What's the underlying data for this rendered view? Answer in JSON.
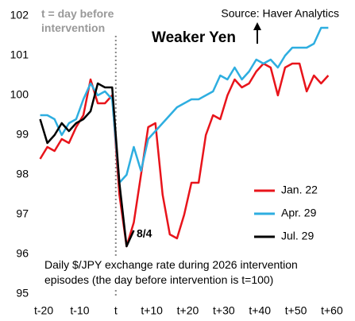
{
  "chart_data": {
    "type": "line",
    "source": "Source: Haver Analytics",
    "marker_note": "t = day before intervention",
    "direction_label": "Weaker Yen",
    "point_label": "8/4",
    "note": "Daily $/JPY exchange rate during 2026 intervention episodes (the day before intervention is t=100)",
    "x": [
      -21,
      -19,
      -17,
      -15,
      -13,
      -11,
      -9,
      -7,
      -5,
      -3,
      -1,
      1,
      3,
      5,
      7,
      9,
      11,
      13,
      15,
      17,
      19,
      21,
      23,
      25,
      27,
      29,
      31,
      33,
      35,
      37,
      39,
      41,
      43,
      45,
      47,
      49,
      51,
      53,
      55,
      57,
      59
    ],
    "series": [
      {
        "name": "Jan. 22",
        "color": "#e8141b",
        "values": [
          98.4,
          98.7,
          98.6,
          98.9,
          98.8,
          99.2,
          99.5,
          100.4,
          99.8,
          99.8,
          100.0,
          97.5,
          96.2,
          96.8,
          98.0,
          99.2,
          99.3,
          97.5,
          96.5,
          96.4,
          97.0,
          97.8,
          97.8,
          99.0,
          99.5,
          99.4,
          100.0,
          100.4,
          100.2,
          100.3,
          100.6,
          100.8,
          100.7,
          100.0,
          100.7,
          100.8,
          100.8,
          100.1,
          100.5,
          100.3,
          100.5
        ]
      },
      {
        "name": "Apr. 29",
        "color": "#2eaee0",
        "values": [
          99.5,
          99.5,
          99.4,
          99.0,
          99.3,
          99.4,
          99.9,
          100.3,
          100.0,
          100.1,
          99.9,
          97.8,
          98.0,
          98.7,
          98.1,
          98.9,
          99.1,
          99.3,
          99.5,
          99.7,
          99.8,
          99.9,
          99.9,
          100.0,
          100.1,
          100.5,
          100.4,
          100.7,
          100.4,
          100.6,
          100.9,
          100.8,
          100.9,
          100.7,
          101.0,
          101.2,
          101.2,
          101.2,
          101.3,
          101.7,
          101.7
        ]
      },
      {
        "name": "Jul. 29",
        "color": "#000000",
        "values": [
          99.4,
          98.8,
          99.0,
          99.3,
          99.1,
          99.3,
          99.4,
          99.6,
          100.3,
          100.2,
          100.2,
          97.8,
          96.2,
          96.6,
          null,
          null,
          null,
          null,
          null,
          null,
          null,
          null,
          null,
          null,
          null,
          null,
          null,
          null,
          null,
          null,
          null,
          null,
          null,
          null,
          null,
          null,
          null,
          null,
          null,
          null,
          null
        ]
      }
    ],
    "xlim": [
      -22,
      62
    ],
    "ylim": [
      95,
      102
    ],
    "xticks": [
      {
        "value": -20,
        "label": "t-20"
      },
      {
        "value": -10,
        "label": "t-10"
      },
      {
        "value": 0,
        "label": "t"
      },
      {
        "value": 10,
        "label": "t+10"
      },
      {
        "value": 20,
        "label": "t+20"
      },
      {
        "value": 30,
        "label": "t+30"
      },
      {
        "value": 40,
        "label": "t+40"
      },
      {
        "value": 50,
        "label": "t+50"
      },
      {
        "value": 60,
        "label": "t+60"
      }
    ],
    "yticks": [
      95,
      96,
      97,
      98,
      99,
      100,
      101,
      102
    ],
    "vline": 0,
    "legend": "lower right"
  }
}
